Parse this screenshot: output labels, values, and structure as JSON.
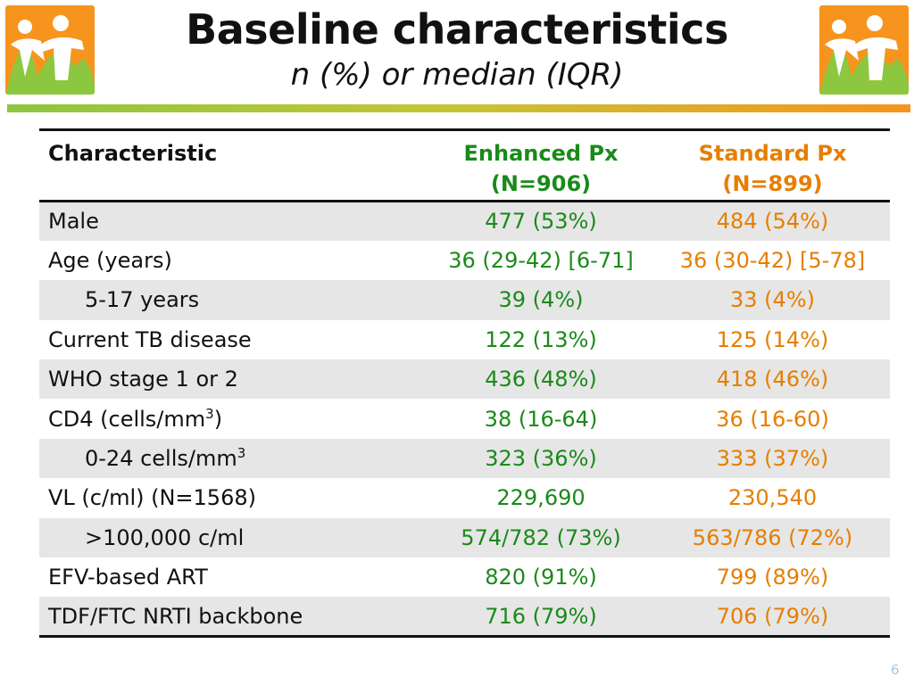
{
  "header": {
    "title": "Baseline characteristics",
    "subtitle": "n (%) or median (IQR)"
  },
  "colors": {
    "enhanced": "#1a8a1a",
    "standard": "#e67e00",
    "bar_start": "#8dc63f",
    "bar_end": "#f7941d",
    "logo_bg": "#f7941d",
    "logo_green": "#8dc63f"
  },
  "logos": [
    {
      "icon": "family-logo-icon"
    },
    {
      "icon": "family-logo-icon"
    }
  ],
  "table": {
    "columns": {
      "characteristic": "Characteristic",
      "enhanced_name": "Enhanced Px",
      "enhanced_n": "(N=906)",
      "standard_name": "Standard Px",
      "standard_n": "(N=899)"
    },
    "rows": [
      {
        "label": "Male",
        "enhanced": "477 (53%)",
        "standard": "484 (54%)"
      },
      {
        "label": "Age (years)",
        "enhanced": "36 (29-42) [6-71]",
        "standard": "36 (30-42) [5-78]"
      },
      {
        "label": "5-17 years",
        "enhanced": "39 (4%)",
        "standard": "33 (4%)"
      },
      {
        "label": "Current TB disease",
        "enhanced": "122 (13%)",
        "standard": "125 (14%)"
      },
      {
        "label": "WHO stage 1 or 2",
        "enhanced": "436 (48%)",
        "standard": "418 (46%)"
      },
      {
        "label": "CD4 (cells/mm",
        "label_sup": "3",
        "label_suffix": ")",
        "enhanced": "38 (16-64)",
        "standard": "36 (16-60)"
      },
      {
        "label": "0-24 cells/mm",
        "label_sup": "3",
        "enhanced": "323 (36%)",
        "standard": "333 (37%)"
      },
      {
        "label": "VL (c/ml) (N=1568)",
        "enhanced": "229,690",
        "standard": "230,540"
      },
      {
        "label": ">100,000 c/ml",
        "enhanced": "574/782 (73%)",
        "standard": "563/786 (72%)"
      },
      {
        "label": "EFV-based ART",
        "enhanced": "820 (91%)",
        "standard": "799 (89%)"
      },
      {
        "label": "TDF/FTC NRTI backbone",
        "enhanced": "716 (79%)",
        "standard": "706 (79%)"
      }
    ]
  },
  "footer": {
    "page_number": "6"
  }
}
